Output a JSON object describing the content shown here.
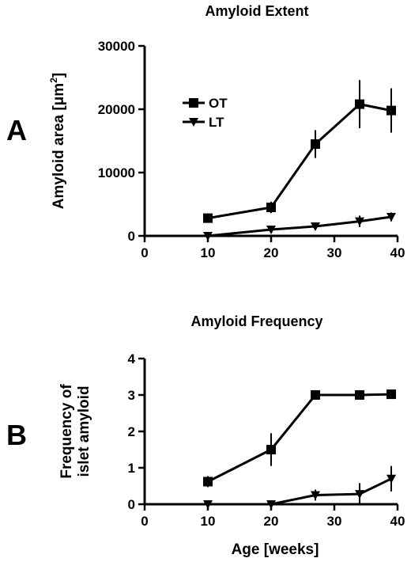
{
  "chart_data": [
    {
      "type": "line",
      "panel_label": "A",
      "title": "Amyloid Extent",
      "xlabel": "",
      "ylabel_main": "Amyloid area [",
      "ylabel_unit": "μm",
      "ylabel_sup": "2",
      "ylabel_close": "]",
      "xlim": [
        0,
        40
      ],
      "ylim": [
        0,
        30000
      ],
      "xticks": [
        0,
        10,
        20,
        30,
        40
      ],
      "yticks": [
        0,
        10000,
        20000,
        30000
      ],
      "legend_position": "upper-left",
      "series": [
        {
          "name": "OT",
          "marker": "square",
          "x": [
            10,
            20,
            27,
            34,
            39
          ],
          "y": [
            2800,
            4500,
            14500,
            20800,
            19800
          ],
          "err": [
            400,
            900,
            2200,
            3800,
            3500
          ]
        },
        {
          "name": "LT",
          "marker": "triangle-down",
          "x": [
            10,
            20,
            27,
            34,
            39
          ],
          "y": [
            0,
            1000,
            1500,
            2300,
            3000
          ],
          "err": [
            0,
            200,
            300,
            900,
            700
          ]
        }
      ]
    },
    {
      "type": "line",
      "panel_label": "B",
      "title": "Amyloid Frequency",
      "xlabel": "Age [weeks]",
      "ylabel_lines": [
        "Frequency of",
        "islet amyloid"
      ],
      "xlim": [
        0,
        40
      ],
      "ylim": [
        0,
        4
      ],
      "xticks": [
        0,
        10,
        20,
        30,
        40
      ],
      "yticks": [
        0,
        1,
        2,
        3,
        4
      ],
      "series": [
        {
          "name": "",
          "marker": "square",
          "x": [
            10,
            20,
            27,
            34,
            39
          ],
          "y": [
            0.62,
            1.5,
            3.0,
            3.0,
            3.02
          ],
          "err": [
            0.15,
            0.45,
            0,
            0,
            0
          ]
        },
        {
          "name": "",
          "marker": "triangle-down",
          "x": [
            10,
            20,
            27,
            34,
            39
          ],
          "y": [
            0,
            0,
            0.25,
            0.28,
            0.7
          ],
          "err": [
            0,
            0,
            0.15,
            0.3,
            0.35
          ]
        }
      ]
    }
  ]
}
